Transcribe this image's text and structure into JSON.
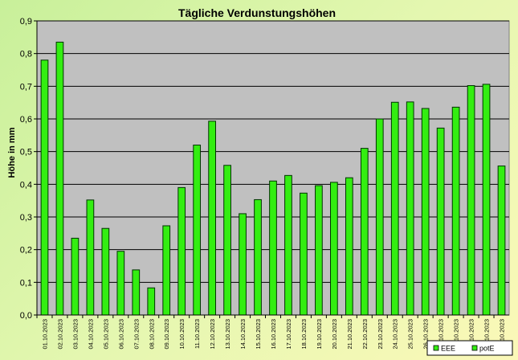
{
  "chart_data": {
    "type": "bar",
    "title": "Tägliche Verdunstungshöhen",
    "xlabel": "",
    "ylabel": "Höhe in mm",
    "ylim": [
      0,
      0.9
    ],
    "yticks": [
      "0,0",
      "0,1",
      "0,2",
      "0,3",
      "0,4",
      "0,5",
      "0,6",
      "0,7",
      "0,8",
      "0,9"
    ],
    "grid": true,
    "legend_position": "bottom-right",
    "colors": {
      "plot_background": "#c0c0c0",
      "bar_fill": "#33ee11",
      "bar_stroke": "#003300",
      "gridline": "#000000"
    },
    "categories": [
      "01.10.2023",
      "02.10.2023",
      "03.10.2023",
      "04.10.2023",
      "05.10.2023",
      "06.10.2023",
      "07.10.2023",
      "08.10.2023",
      "09.10.2023",
      "10.10.2023",
      "11.10.2023",
      "12.10.2023",
      "13.10.2023",
      "14.10.2023",
      "15.10.2023",
      "16.10.2023",
      "17.10.2023",
      "18.10.2023",
      "19.10.2023",
      "20.10.2023",
      "21.10.2023",
      "22.10.2023",
      "23.10.2023",
      "24.10.2023",
      "25.10.2023",
      "26.10.2023",
      "27.10.2023",
      "28.10.2023",
      "29.10.2023",
      "30.10.2023",
      "31.10.2023"
    ],
    "series": [
      {
        "name": "potE",
        "values": [
          0.78,
          0.835,
          0.235,
          0.352,
          0.265,
          0.195,
          0.138,
          0.083,
          0.273,
          0.39,
          0.52,
          0.593,
          0.458,
          0.31,
          0.353,
          0.41,
          0.427,
          0.373,
          0.396,
          0.406,
          0.42,
          0.51,
          0.6,
          0.651,
          0.652,
          0.632,
          0.572,
          0.636,
          0.702,
          0.706,
          0.456
        ]
      }
    ],
    "legend_entries": [
      {
        "label": "EEE",
        "color": "#33ee11"
      },
      {
        "label": "potE",
        "color": "#33ee11"
      }
    ]
  }
}
